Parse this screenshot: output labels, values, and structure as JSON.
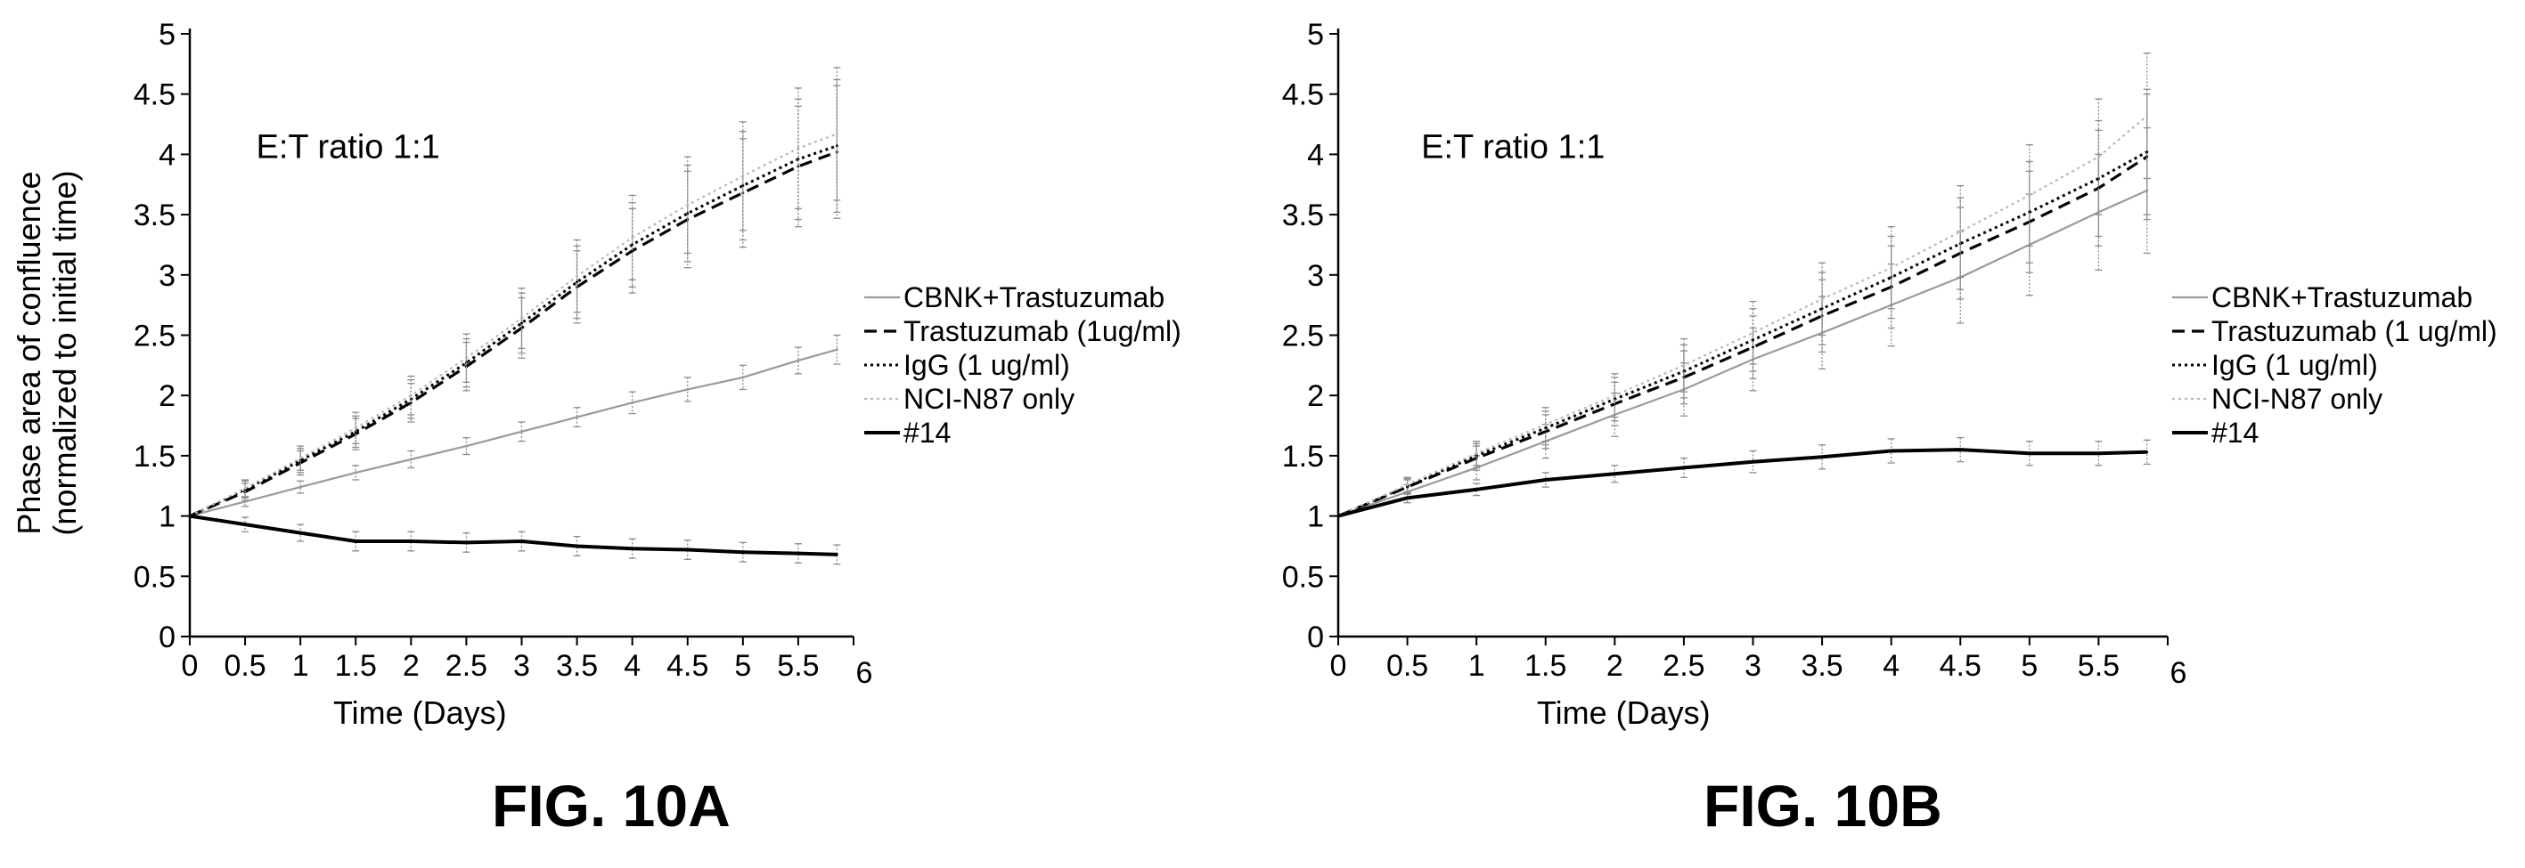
{
  "chart_data": [
    {
      "type": "line",
      "annotation": "E:T ratio 1:1",
      "xlabel": "Time (Days)",
      "ylabel_line1": "Phase area of confluence",
      "ylabel_line2": "(normalized to initial time)",
      "xlim": [
        0,
        6
      ],
      "ylim": [
        0,
        5
      ],
      "xticks": [
        "0",
        "0.5",
        "1",
        "1.5",
        "2",
        "2.5",
        "3",
        "3.5",
        "4",
        "4.5",
        "5",
        "5.5",
        "6"
      ],
      "yticks": [
        "0",
        "0.5",
        "1",
        "1.5",
        "2",
        "2.5",
        "3",
        "3.5",
        "4",
        "4.5",
        "5"
      ],
      "grid": false,
      "legend_position": "right",
      "x": [
        0,
        0.5,
        1,
        1.5,
        2,
        2.5,
        3,
        3.5,
        4,
        4.5,
        5,
        5.5,
        5.85
      ],
      "series": [
        {
          "name": "CBNK+Trastuzumab",
          "style": "grey-solid",
          "color": "#9a9a9a",
          "values": [
            1.0,
            1.12,
            1.24,
            1.36,
            1.47,
            1.58,
            1.7,
            1.82,
            1.94,
            2.05,
            2.15,
            2.29,
            2.38
          ],
          "error": [
            0.03,
            0.04,
            0.05,
            0.06,
            0.07,
            0.07,
            0.08,
            0.08,
            0.09,
            0.1,
            0.1,
            0.11,
            0.12
          ]
        },
        {
          "name": "Trastuzumab (1ug/ml)",
          "style": "dashed",
          "color": "#000000",
          "values": [
            1.0,
            1.2,
            1.44,
            1.68,
            1.94,
            2.24,
            2.56,
            2.9,
            3.2,
            3.46,
            3.68,
            3.9,
            4.02
          ],
          "error": [
            0.04,
            0.07,
            0.1,
            0.13,
            0.16,
            0.2,
            0.25,
            0.3,
            0.35,
            0.4,
            0.45,
            0.5,
            0.55
          ]
        },
        {
          "name": "IgG (1 ug/ml)",
          "style": "dotted",
          "color": "#000000",
          "values": [
            1.0,
            1.22,
            1.46,
            1.7,
            1.97,
            2.27,
            2.6,
            2.94,
            3.25,
            3.51,
            3.74,
            3.96,
            4.07
          ],
          "error": [
            0.04,
            0.07,
            0.1,
            0.13,
            0.16,
            0.2,
            0.25,
            0.3,
            0.35,
            0.4,
            0.45,
            0.5,
            0.55
          ]
        },
        {
          "name": "NCI-N87 only",
          "style": "light-dotted",
          "color": "#b8b8b8",
          "values": [
            1.0,
            1.23,
            1.48,
            1.73,
            2.0,
            2.31,
            2.64,
            2.99,
            3.31,
            3.58,
            3.82,
            4.05,
            4.17
          ],
          "error": [
            0.04,
            0.07,
            0.1,
            0.13,
            0.16,
            0.2,
            0.25,
            0.3,
            0.35,
            0.4,
            0.45,
            0.5,
            0.55
          ]
        },
        {
          "name": "#14",
          "style": "thick-solid",
          "color": "#000000",
          "values": [
            1.0,
            0.93,
            0.86,
            0.79,
            0.79,
            0.78,
            0.79,
            0.75,
            0.73,
            0.72,
            0.7,
            0.69,
            0.68
          ],
          "error": [
            0.02,
            0.06,
            0.07,
            0.08,
            0.08,
            0.08,
            0.08,
            0.08,
            0.08,
            0.08,
            0.08,
            0.08,
            0.08
          ]
        }
      ]
    },
    {
      "type": "line",
      "annotation": "E:T ratio 1:1",
      "xlabel": "Time (Days)",
      "ylabel_line1": "Phase area of confluence",
      "ylabel_line2": "(normalized to initial time)",
      "xlim": [
        0,
        6
      ],
      "ylim": [
        0,
        5
      ],
      "xticks": [
        "0",
        "0.5",
        "1",
        "1.5",
        "2",
        "2.5",
        "3",
        "3.5",
        "4",
        "4.5",
        "5",
        "5.5",
        "6"
      ],
      "yticks": [
        "0",
        "0.5",
        "1",
        "1.5",
        "2",
        "2.5",
        "3",
        "3.5",
        "4",
        "4.5",
        "5"
      ],
      "grid": false,
      "legend_position": "right",
      "x": [
        0,
        0.5,
        1,
        1.5,
        2,
        2.5,
        3,
        3.5,
        4,
        4.5,
        5,
        5.5,
        5.85
      ],
      "series": [
        {
          "name": "CBNK+Trastuzumab",
          "style": "grey-solid",
          "color": "#9a9a9a",
          "values": [
            1.0,
            1.2,
            1.4,
            1.62,
            1.84,
            2.05,
            2.3,
            2.52,
            2.75,
            2.98,
            3.25,
            3.52,
            3.7
          ],
          "error": [
            0.03,
            0.06,
            0.1,
            0.14,
            0.18,
            0.22,
            0.26,
            0.3,
            0.34,
            0.38,
            0.42,
            0.48,
            0.52
          ]
        },
        {
          "name": "Trastuzumab (1 ug/ml)",
          "style": "dashed",
          "color": "#000000",
          "values": [
            1.0,
            1.24,
            1.48,
            1.7,
            1.93,
            2.15,
            2.4,
            2.66,
            2.9,
            3.18,
            3.44,
            3.72,
            3.98
          ],
          "error": [
            0.03,
            0.06,
            0.1,
            0.14,
            0.18,
            0.22,
            0.26,
            0.3,
            0.34,
            0.38,
            0.42,
            0.48,
            0.52
          ]
        },
        {
          "name": "IgG (1 ug/ml)",
          "style": "dotted",
          "color": "#000000",
          "values": [
            1.0,
            1.25,
            1.5,
            1.73,
            1.97,
            2.2,
            2.46,
            2.72,
            2.98,
            3.26,
            3.52,
            3.8,
            4.02
          ],
          "error": [
            0.03,
            0.06,
            0.1,
            0.14,
            0.18,
            0.22,
            0.26,
            0.3,
            0.34,
            0.38,
            0.42,
            0.48,
            0.52
          ]
        },
        {
          "name": "NCI-N87 only",
          "style": "light-dotted",
          "color": "#b8b8b8",
          "values": [
            1.0,
            1.26,
            1.52,
            1.76,
            2.0,
            2.25,
            2.52,
            2.8,
            3.06,
            3.36,
            3.66,
            3.98,
            4.32
          ],
          "error": [
            0.03,
            0.06,
            0.1,
            0.14,
            0.18,
            0.22,
            0.26,
            0.3,
            0.34,
            0.38,
            0.42,
            0.48,
            0.52
          ]
        },
        {
          "name": "#14",
          "style": "thick-solid",
          "color": "#000000",
          "values": [
            1.0,
            1.15,
            1.22,
            1.3,
            1.35,
            1.4,
            1.45,
            1.49,
            1.54,
            1.55,
            1.52,
            1.52,
            1.53
          ],
          "error": [
            0.02,
            0.04,
            0.05,
            0.06,
            0.07,
            0.08,
            0.09,
            0.1,
            0.1,
            0.1,
            0.1,
            0.1,
            0.1
          ]
        }
      ]
    }
  ],
  "figures": {
    "a_label": "FIG. 10A",
    "b_label": "FIG. 10B"
  }
}
